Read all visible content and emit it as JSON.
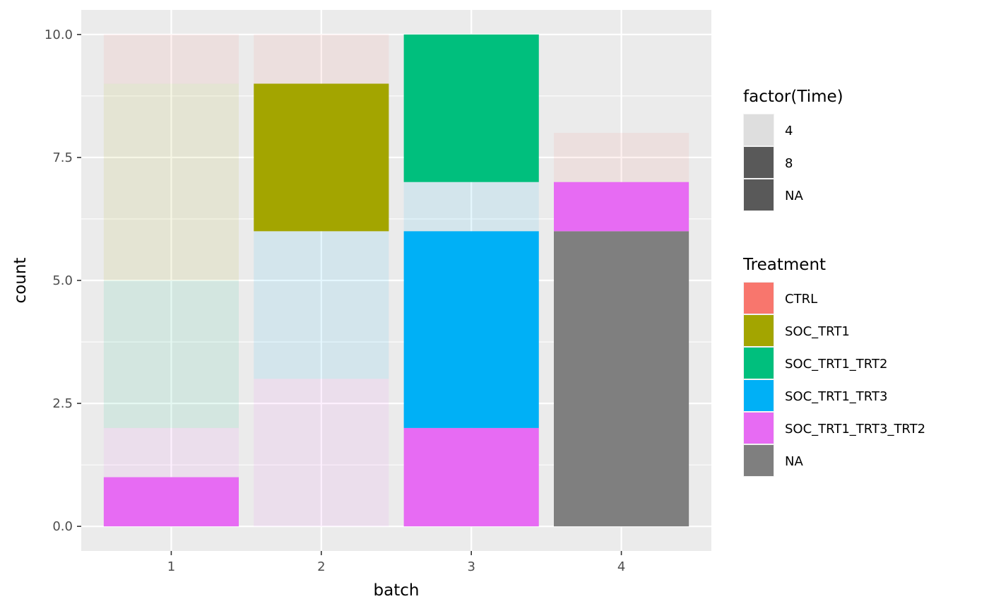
{
  "chart_data": {
    "type": "bar",
    "stacked": true,
    "xlabel": "batch",
    "ylabel": "count",
    "categories": [
      "1",
      "2",
      "3",
      "4"
    ],
    "ylim": [
      -0.5,
      10.5
    ],
    "yticks": [
      0,
      2.5,
      5,
      7.5,
      10
    ],
    "ytick_labels": [
      "0.0",
      "2.5",
      "5.0",
      "7.5",
      "10.0"
    ],
    "grid": true,
    "legend_position": "right",
    "treatment_colors": {
      "CTRL": "#F8766D",
      "SOC_TRT1": "#A3A500",
      "SOC_TRT1_TRT2": "#00BF7D",
      "SOC_TRT1_TRT3": "#00B0F6",
      "SOC_TRT1_TRT3_TRT2": "#E76BF3",
      "NA": "#7F7F7F"
    },
    "segments": [
      {
        "batch": "1",
        "treatment": "SOC_TRT1_TRT3_TRT2",
        "time": "8",
        "count": 1
      },
      {
        "batch": "1",
        "treatment": "SOC_TRT1_TRT3_TRT2",
        "time": "4",
        "count": 1
      },
      {
        "batch": "1",
        "treatment": "SOC_TRT1_TRT2",
        "time": "4",
        "count": 3
      },
      {
        "batch": "1",
        "treatment": "SOC_TRT1",
        "time": "4",
        "count": 4
      },
      {
        "batch": "1",
        "treatment": "CTRL",
        "time": "4",
        "count": 1
      },
      {
        "batch": "2",
        "treatment": "SOC_TRT1_TRT3_TRT2",
        "time": "4",
        "count": 3
      },
      {
        "batch": "2",
        "treatment": "SOC_TRT1_TRT3",
        "time": "4",
        "count": 3
      },
      {
        "batch": "2",
        "treatment": "SOC_TRT1",
        "time": "8",
        "count": 3
      },
      {
        "batch": "2",
        "treatment": "CTRL",
        "time": "4",
        "count": 1
      },
      {
        "batch": "3",
        "treatment": "SOC_TRT1_TRT3_TRT2",
        "time": "8",
        "count": 2
      },
      {
        "batch": "3",
        "treatment": "SOC_TRT1_TRT3",
        "time": "8",
        "count": 4
      },
      {
        "batch": "3",
        "treatment": "SOC_TRT1_TRT3",
        "time": "4",
        "count": 1
      },
      {
        "batch": "3",
        "treatment": "SOC_TRT1_TRT2",
        "time": "8",
        "count": 3
      },
      {
        "batch": "4",
        "treatment": "NA",
        "time": "NA",
        "count": 6
      },
      {
        "batch": "4",
        "treatment": "SOC_TRT1_TRT3_TRT2",
        "time": "8",
        "count": 1
      },
      {
        "batch": "4",
        "treatment": "CTRL",
        "time": "4",
        "count": 1
      }
    ],
    "legends": [
      {
        "title": "factor(Time)",
        "entries": [
          {
            "label": "4",
            "color": "#DEDEDE"
          },
          {
            "label": "8",
            "color": "#595959"
          },
          {
            "label": "NA",
            "color": "#595959"
          }
        ]
      },
      {
        "title": "Treatment",
        "entries": [
          {
            "label": "CTRL",
            "color": "#F8766D"
          },
          {
            "label": "SOC_TRT1",
            "color": "#A3A500"
          },
          {
            "label": "SOC_TRT1_TRT2",
            "color": "#00BF7D"
          },
          {
            "label": "SOC_TRT1_TRT3",
            "color": "#00B0F6"
          },
          {
            "label": "SOC_TRT1_TRT3_TRT2",
            "color": "#E76BF3"
          },
          {
            "label": "NA",
            "color": "#7F7F7F"
          }
        ]
      }
    ],
    "faded_opacity": 0.1
  }
}
